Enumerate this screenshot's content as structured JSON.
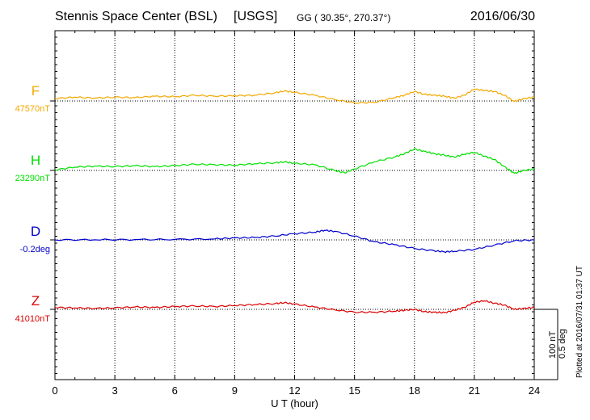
{
  "header": {
    "station": "Stennis Space Center (BSL)",
    "network": "[USGS]",
    "coords": "GG ( 30.35°, 270.37°)",
    "date": "2016/06/30"
  },
  "footer": {
    "plotted": "Plotted at 2016/07/31 01:37 UT",
    "scale_nt": "100 nT",
    "scale_deg": "0.5 deg"
  },
  "colors": {
    "F": "#f4a800",
    "H": "#00e000",
    "D": "#0000cc",
    "Z": "#dd0000",
    "grid": "#000000"
  },
  "chart_data": {
    "type": "line",
    "title": "Stennis Space Center (BSL)  [USGS]",
    "xlabel": "U T (hour)",
    "xlim": [
      0,
      24
    ],
    "xticks": [
      "0",
      "3",
      "6",
      "9",
      "12",
      "15",
      "18",
      "21",
      "24"
    ],
    "scale": {
      "nT": 100,
      "deg": 0.5
    },
    "series": [
      {
        "name": "F",
        "baseline_label": "47570nT",
        "baseline": 47570,
        "unit": "nT",
        "x": [
          0,
          1,
          2,
          3,
          4,
          5,
          6,
          7,
          8,
          9,
          10,
          11,
          11.5,
          12,
          13,
          14,
          15,
          16,
          17,
          17.5,
          18,
          18.5,
          19,
          19.5,
          20,
          20.5,
          21,
          21.5,
          22,
          22.5,
          23,
          23.5,
          24
        ],
        "values": [
          47575,
          47578,
          47576,
          47578,
          47577,
          47580,
          47579,
          47582,
          47580,
          47581,
          47582,
          47587,
          47591,
          47588,
          47582,
          47573,
          47566,
          47567,
          47577,
          47582,
          47590,
          47584,
          47582,
          47580,
          47576,
          47582,
          47595,
          47592,
          47590,
          47582,
          47569,
          47575,
          47578
        ]
      },
      {
        "name": "H",
        "baseline_label": "23290nT",
        "baseline": 23290,
        "unit": "nT",
        "x": [
          0,
          1,
          2,
          3,
          4,
          5,
          6,
          7,
          8,
          9,
          10,
          11,
          11.5,
          12,
          13,
          14,
          14.5,
          15,
          16,
          17,
          17.5,
          18,
          18.5,
          19,
          19.5,
          20,
          20.5,
          21,
          21.5,
          22,
          22.5,
          23,
          23.5,
          24
        ],
        "values": [
          23291,
          23297,
          23299,
          23298,
          23300,
          23298,
          23300,
          23303,
          23302,
          23301,
          23304,
          23306,
          23308,
          23305,
          23302,
          23290,
          23285,
          23293,
          23308,
          23318,
          23325,
          23335,
          23330,
          23325,
          23322,
          23318,
          23324,
          23328,
          23320,
          23313,
          23298,
          23284,
          23290,
          23293
        ]
      },
      {
        "name": "D",
        "baseline_label": "-0.2deg",
        "baseline": -0.2,
        "unit": "deg",
        "x": [
          0,
          2,
          4,
          6,
          8,
          9,
          10,
          11,
          12,
          13,
          13.5,
          14,
          15,
          16,
          17,
          18,
          19,
          19.5,
          20,
          21,
          22,
          23,
          24
        ],
        "values": [
          -0.2,
          -0.199,
          -0.197,
          -0.195,
          -0.19,
          -0.18,
          -0.175,
          -0.16,
          -0.135,
          -0.12,
          -0.1,
          -0.11,
          -0.16,
          -0.22,
          -0.25,
          -0.29,
          -0.315,
          -0.325,
          -0.32,
          -0.3,
          -0.255,
          -0.21,
          -0.2
        ]
      },
      {
        "name": "Z",
        "baseline_label": "41010nT",
        "baseline": 41010,
        "unit": "nT",
        "x": [
          0,
          1,
          2,
          3,
          4,
          5,
          6,
          7,
          8,
          9,
          10,
          11,
          11.5,
          12,
          13,
          14,
          15,
          16,
          17,
          17.5,
          18,
          18.5,
          19,
          19.5,
          20,
          20.5,
          21,
          21.5,
          22,
          22.5,
          23,
          23.5,
          24
        ],
        "values": [
          41014,
          41013,
          41012,
          41013,
          41015,
          41014,
          41016,
          41017,
          41016,
          41018,
          41020,
          41022,
          41024,
          41021,
          41015,
          41009,
          41004,
          41004,
          41006,
          41008,
          41010,
          41005,
          41004,
          41003,
          41008,
          41014,
          41025,
          41028,
          41023,
          41019,
          41010,
          41012,
          41014
        ]
      }
    ]
  }
}
